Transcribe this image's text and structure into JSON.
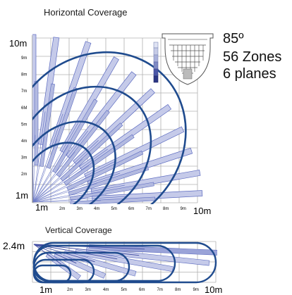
{
  "horizontal": {
    "title": "Horizontal Coverage",
    "y_top_label": "10m",
    "y_ticks": [
      "9m",
      "8m",
      "7m",
      "6M",
      "5m",
      "4m",
      "3m",
      "2m"
    ],
    "y_origin_label": "1m",
    "x_origin_label": "1m",
    "x_ticks": [
      "2m",
      "3m",
      "4m",
      "5m",
      "6m",
      "7m",
      "8m",
      "9m"
    ],
    "x_end_label": "10m"
  },
  "specs": {
    "angle": "85º",
    "zones": "56 Zones",
    "planes": "6 planes"
  },
  "vertical": {
    "title": "Vertical Coverage",
    "height_label": "2.4m",
    "x_origin_label": "1m",
    "x_ticks": [
      "2m",
      "3m",
      "4m",
      "5m",
      "6m",
      "7m",
      "8m",
      "9m"
    ],
    "x_end_label": "10m"
  },
  "colors": {
    "ellipse": "#1f4b8e",
    "beam_fill": "#c5cae9",
    "beam_stroke": "#5c6bc0",
    "grid": "#b0b0b0"
  },
  "icons": [
    "lens-pattern-icon"
  ]
}
